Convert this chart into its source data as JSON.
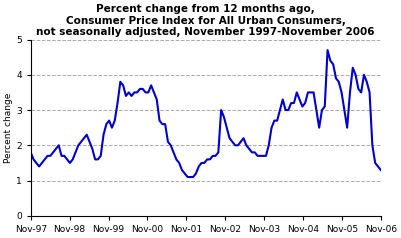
{
  "title_lines": [
    "Percent change from 12 months ago,",
    "Consumer Price Index for All Urban Consumers,",
    "not seasonally adjusted, November 1997-November 2006"
  ],
  "ylabel": "Percent change",
  "ylim": [
    0,
    5
  ],
  "yticks": [
    0,
    1,
    2,
    3,
    4,
    5
  ],
  "xtick_labels": [
    "Nov-97",
    "Nov-98",
    "Nov-99",
    "Nov-00",
    "Nov-01",
    "Nov-02",
    "Nov-03",
    "Nov-04",
    "Nov-05",
    "Nov-06"
  ],
  "line_color": "#0000CC",
  "line_width": 1.5,
  "grid_color": "#aaaaaa",
  "background_color": "#ffffff",
  "values": [
    1.8,
    1.6,
    1.5,
    1.4,
    1.5,
    1.6,
    1.7,
    1.7,
    1.8,
    1.9,
    2.0,
    1.7,
    1.7,
    1.6,
    1.5,
    1.6,
    1.8,
    2.0,
    2.1,
    2.2,
    2.3,
    2.1,
    1.9,
    1.6,
    1.6,
    1.7,
    2.3,
    2.6,
    2.7,
    2.5,
    2.7,
    3.2,
    3.8,
    3.7,
    3.4,
    3.5,
    3.4,
    3.5,
    3.5,
    3.6,
    3.6,
    3.5,
    3.5,
    3.7,
    3.5,
    3.3,
    2.7,
    2.6,
    2.6,
    2.1,
    2.0,
    1.8,
    1.6,
    1.5,
    1.3,
    1.2,
    1.1,
    1.1,
    1.1,
    1.2,
    1.4,
    1.5,
    1.5,
    1.6,
    1.6,
    1.7,
    1.7,
    1.8,
    3.0,
    2.8,
    2.5,
    2.2,
    2.1,
    2.0,
    2.0,
    2.1,
    2.2,
    2.0,
    1.9,
    1.8,
    1.8,
    1.7,
    1.7,
    1.7,
    1.7,
    2.0,
    2.5,
    2.7,
    2.7,
    3.0,
    3.3,
    3.0,
    3.0,
    3.2,
    3.2,
    3.5,
    3.3,
    3.1,
    3.2,
    3.5,
    3.5,
    3.5,
    3.0,
    2.5,
    3.0,
    3.1,
    4.7,
    4.4,
    4.3,
    3.9,
    3.8,
    3.5,
    3.0,
    2.5,
    3.5,
    4.2,
    4.0,
    3.6,
    3.5,
    4.0,
    3.8,
    3.5,
    2.0,
    1.5,
    1.4,
    1.3
  ]
}
